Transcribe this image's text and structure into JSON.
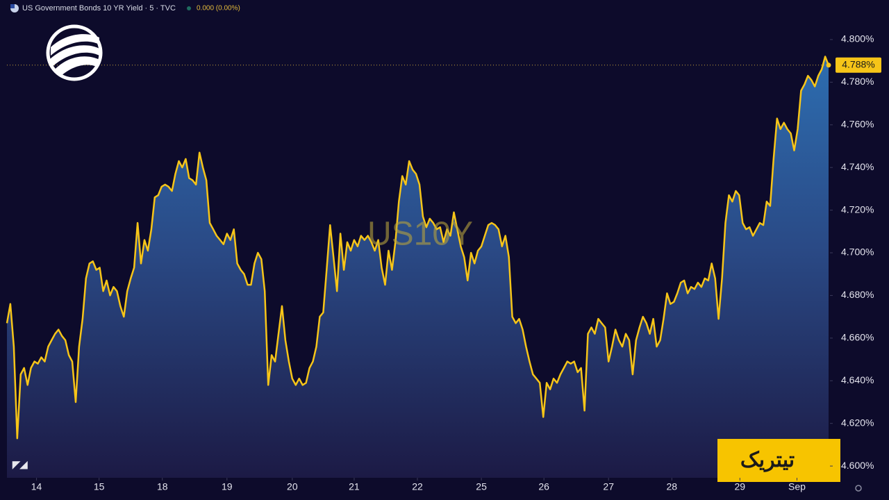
{
  "header": {
    "symbol": "US Government Bonds 10 YR Yield · 5 · TVC",
    "change": "0.000 (0.00%)"
  },
  "brand": "تیتریک",
  "chart_data": {
    "type": "line",
    "area": true,
    "watermark": "US10Y",
    "series": [
      {
        "color": "#f7c518",
        "values": [
          4.667,
          4.676,
          4.656,
          4.613,
          4.643,
          4.646,
          4.638,
          4.646,
          4.649,
          4.648,
          4.651,
          4.649,
          4.656,
          4.659,
          4.662,
          4.664,
          4.661,
          4.659,
          4.652,
          4.649,
          4.63,
          4.656,
          4.669,
          4.688,
          4.695,
          4.696,
          4.692,
          4.693,
          4.682,
          4.687,
          4.68,
          4.684,
          4.682,
          4.675,
          4.67,
          4.682,
          4.688,
          4.693,
          4.714,
          4.695,
          4.706,
          4.701,
          4.711,
          4.726,
          4.727,
          4.731,
          4.732,
          4.731,
          4.729,
          4.737,
          4.743,
          4.74,
          4.744,
          4.735,
          4.734,
          4.732,
          4.747,
          4.74,
          4.734,
          4.714,
          4.711,
          4.708,
          4.706,
          4.704,
          4.709,
          4.706,
          4.711,
          4.695,
          4.692,
          4.69,
          4.685,
          4.685,
          4.695,
          4.7,
          4.697,
          4.682,
          4.638,
          4.652,
          4.649,
          4.662,
          4.675,
          4.659,
          4.649,
          4.641,
          4.638,
          4.641,
          4.638,
          4.639,
          4.646,
          4.649,
          4.656,
          4.67,
          4.672,
          4.692,
          4.713,
          4.698,
          4.682,
          4.709,
          4.692,
          4.705,
          4.701,
          4.706,
          4.703,
          4.708,
          4.706,
          4.708,
          4.705,
          4.701,
          4.706,
          4.693,
          4.685,
          4.701,
          4.692,
          4.705,
          4.724,
          4.736,
          4.732,
          4.743,
          4.739,
          4.737,
          4.732,
          4.717,
          4.712,
          4.716,
          4.714,
          4.711,
          4.712,
          4.705,
          4.711,
          4.708,
          4.719,
          4.711,
          4.703,
          4.698,
          4.687,
          4.7,
          4.695,
          4.701,
          4.703,
          4.708,
          4.713,
          4.714,
          4.713,
          4.711,
          4.703,
          4.708,
          4.698,
          4.67,
          4.667,
          4.669,
          4.664,
          4.656,
          4.649,
          4.643,
          4.641,
          4.639,
          4.623,
          4.639,
          4.636,
          4.641,
          4.639,
          4.643,
          4.646,
          4.649,
          4.648,
          4.649,
          4.644,
          4.646,
          4.626,
          4.662,
          4.665,
          4.662,
          4.669,
          4.667,
          4.665,
          4.649,
          4.656,
          4.664,
          4.659,
          4.656,
          4.662,
          4.659,
          4.643,
          4.659,
          4.665,
          4.67,
          4.667,
          4.662,
          4.669,
          4.656,
          4.659,
          4.669,
          4.681,
          4.676,
          4.677,
          4.681,
          4.686,
          4.687,
          4.681,
          4.684,
          4.683,
          4.686,
          4.684,
          4.688,
          4.687,
          4.695,
          4.688,
          4.669,
          4.688,
          4.714,
          4.727,
          4.724,
          4.729,
          4.727,
          4.714,
          4.711,
          4.712,
          4.708,
          4.711,
          4.714,
          4.713,
          4.724,
          4.722,
          4.744,
          4.763,
          4.758,
          4.761,
          4.758,
          4.756,
          4.748,
          4.758,
          4.776,
          4.779,
          4.783,
          4.781,
          4.778,
          4.783,
          4.786,
          4.792,
          4.788
        ]
      }
    ],
    "last_value": {
      "value": 4.788,
      "label": "4.788%"
    },
    "xlim": [
      0,
      239
    ],
    "xticks": [
      {
        "value": 8.6,
        "label": "14"
      },
      {
        "value": 26.8,
        "label": "15"
      },
      {
        "value": 45.2,
        "label": "18"
      },
      {
        "value": 64,
        "label": "19"
      },
      {
        "value": 83,
        "label": "20"
      },
      {
        "value": 101,
        "label": "21"
      },
      {
        "value": 119.4,
        "label": "22"
      },
      {
        "value": 138,
        "label": "25"
      },
      {
        "value": 156.2,
        "label": "26"
      },
      {
        "value": 175,
        "label": "27"
      },
      {
        "value": 193.4,
        "label": "28"
      },
      {
        "value": 213.2,
        "label": "29"
      },
      {
        "value": 229.8,
        "label": "Sep"
      }
    ],
    "ylim": [
      4.5945,
      4.8104
    ],
    "yticks": [
      {
        "value": 4.6,
        "label": "4.600%"
      },
      {
        "value": 4.62,
        "label": "4.620%"
      },
      {
        "value": 4.64,
        "label": "4.640%"
      },
      {
        "value": 4.66,
        "label": "4.660%"
      },
      {
        "value": 4.68,
        "label": "4.680%"
      },
      {
        "value": 4.7,
        "label": "4.700%"
      },
      {
        "value": 4.72,
        "label": "4.720%"
      },
      {
        "value": 4.74,
        "label": "4.740%"
      },
      {
        "value": 4.76,
        "label": "4.760%"
      },
      {
        "value": 4.78,
        "label": "4.780%"
      },
      {
        "value": 4.8,
        "label": "4.800%"
      }
    ]
  }
}
